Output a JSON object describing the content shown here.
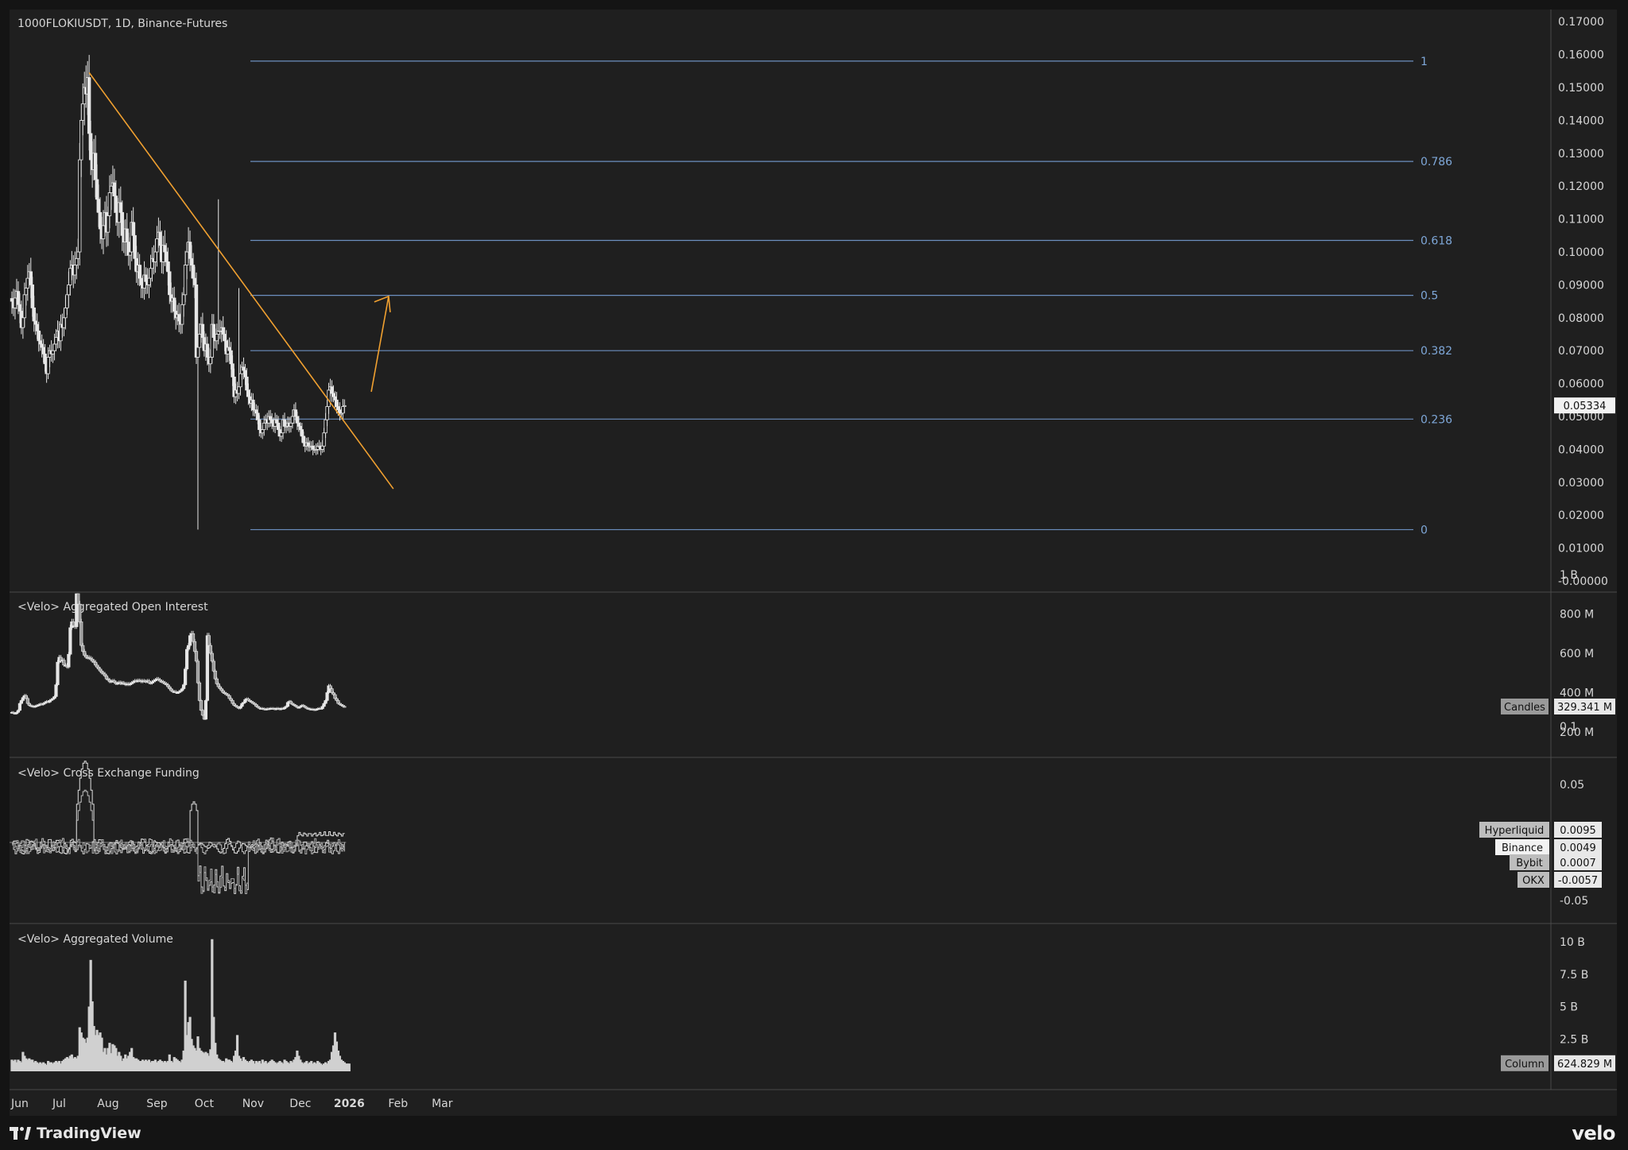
{
  "header": {
    "symbol_line": "1000FLOKIUSDT, 1D, Binance-Futures"
  },
  "chart_data": [
    {
      "type": "candlestick",
      "title": "1000FLOKIUSDT, 1D, Binance-Futures",
      "ylim": [
        0,
        0.175
      ],
      "yticks": [
        "0.17000",
        "0.16000",
        "0.15000",
        "0.14000",
        "0.13000",
        "0.12000",
        "0.11000",
        "0.10000",
        "0.09000",
        "0.08000",
        "0.07000",
        "0.06000",
        "0.05000",
        "0.04000",
        "0.03000",
        "0.02000",
        "0.01000",
        "-0.00000"
      ],
      "last_price": "0.05334",
      "fib_levels": [
        {
          "label": "1",
          "value": 0.158
        },
        {
          "label": "0.786",
          "value": 0.1275
        },
        {
          "label": "0.618",
          "value": 0.1035
        },
        {
          "label": "0.5",
          "value": 0.0868
        },
        {
          "label": "0.382",
          "value": 0.07
        },
        {
          "label": "0.236",
          "value": 0.0492
        },
        {
          "label": "0",
          "value": 0.0156
        }
      ],
      "trendline": {
        "from": {
          "date": "2025-07-20",
          "value": 0.1545
        },
        "to": {
          "date": "2026-01-29",
          "value": 0.028
        },
        "color": "#f0a030"
      },
      "arrow": {
        "from": {
          "date": "2026-01-15",
          "value": 0.0575
        },
        "to": {
          "date": "2026-01-26",
          "value": 0.0865
        },
        "color": "#f0a030"
      },
      "closes": [
        0.085,
        0.083,
        0.086,
        0.088,
        0.084,
        0.082,
        0.077,
        0.08,
        0.087,
        0.089,
        0.092,
        0.094,
        0.09,
        0.083,
        0.079,
        0.078,
        0.076,
        0.073,
        0.072,
        0.071,
        0.069,
        0.066,
        0.063,
        0.068,
        0.07,
        0.069,
        0.07,
        0.072,
        0.074,
        0.076,
        0.073,
        0.078,
        0.077,
        0.08,
        0.083,
        0.087,
        0.09,
        0.095,
        0.096,
        0.093,
        0.096,
        0.098,
        0.1,
        0.128,
        0.14,
        0.145,
        0.15,
        0.148,
        0.153,
        0.136,
        0.128,
        0.125,
        0.13,
        0.122,
        0.116,
        0.112,
        0.107,
        0.104,
        0.108,
        0.112,
        0.106,
        0.111,
        0.118,
        0.12,
        0.121,
        0.117,
        0.112,
        0.109,
        0.115,
        0.112,
        0.105,
        0.103,
        0.107,
        0.103,
        0.099,
        0.1,
        0.109,
        0.105,
        0.098,
        0.094,
        0.096,
        0.092,
        0.09,
        0.089,
        0.093,
        0.091,
        0.09,
        0.092,
        0.095,
        0.098,
        0.097,
        0.1,
        0.104,
        0.106,
        0.102,
        0.097,
        0.102,
        0.1,
        0.097,
        0.094,
        0.087,
        0.085,
        0.086,
        0.082,
        0.08,
        0.081,
        0.079,
        0.078,
        0.084,
        0.087,
        0.096,
        0.1,
        0.103,
        0.098,
        0.096,
        0.092,
        0.09,
        0.068,
        0.071,
        0.075,
        0.078,
        0.074,
        0.07,
        0.072,
        0.068,
        0.066,
        0.068,
        0.078,
        0.074,
        0.073,
        0.075,
        0.076,
        0.076,
        0.077,
        0.075,
        0.073,
        0.069,
        0.071,
        0.07,
        0.066,
        0.062,
        0.056,
        0.058,
        0.057,
        0.059,
        0.063,
        0.065,
        0.064,
        0.062,
        0.058,
        0.056,
        0.054,
        0.055,
        0.052,
        0.052,
        0.051,
        0.049,
        0.046,
        0.045,
        0.046,
        0.048,
        0.049,
        0.048,
        0.05,
        0.049,
        0.048,
        0.047,
        0.049,
        0.048,
        0.046,
        0.044,
        0.045,
        0.049,
        0.047,
        0.047,
        0.048,
        0.047,
        0.048,
        0.05,
        0.052,
        0.05,
        0.048,
        0.047,
        0.046,
        0.044,
        0.042,
        0.041,
        0.042,
        0.041,
        0.041,
        0.041,
        0.04,
        0.04,
        0.04,
        0.041,
        0.041,
        0.04,
        0.041,
        0.045,
        0.049,
        0.053,
        0.058,
        0.059,
        0.057,
        0.056,
        0.055,
        0.053,
        0.052,
        0.051,
        0.051,
        0.053,
        0.0533
      ]
    },
    {
      "type": "candlestick",
      "title": "<Velo> Aggregated Open Interest",
      "yticks": [
        "1 B",
        "800 M",
        "600 M",
        "400 M",
        "200 M"
      ],
      "ylim_millions": [
        200,
        1000
      ],
      "last_value": "329.341 M",
      "last_value_tag": "Candles",
      "closes_millions": [
        300,
        295,
        293,
        300,
        310,
        345,
        360,
        375,
        385,
        370,
        345,
        335,
        332,
        330,
        328,
        332,
        335,
        338,
        342,
        340,
        345,
        350,
        355,
        352,
        360,
        365,
        370,
        380,
        440,
        555,
        580,
        560,
        565,
        540,
        540,
        530,
        595,
        730,
        760,
        740,
        735,
        920,
        850,
        760,
        640,
        610,
        590,
        580,
        578,
        575,
        570,
        560,
        555,
        540,
        530,
        520,
        510,
        500,
        495,
        485,
        470,
        465,
        455,
        458,
        460,
        452,
        445,
        448,
        452,
        445,
        450,
        445,
        440,
        445,
        440,
        445,
        450,
        455,
        460,
        458,
        462,
        460,
        455,
        460,
        458,
        455,
        460,
        450,
        448,
        455,
        460,
        465,
        470,
        465,
        458,
        455,
        450,
        445,
        440,
        430,
        420,
        410,
        405,
        405,
        400,
        400,
        405,
        410,
        420,
        440,
        520,
        620,
        640,
        690,
        700,
        660,
        610,
        560,
        450,
        360,
        310,
        285,
        265,
        360,
        690,
        640,
        600,
        560,
        510,
        470,
        445,
        430,
        420,
        410,
        400,
        395,
        390,
        385,
        370,
        360,
        345,
        335,
        330,
        325,
        320,
        330,
        345,
        350,
        365,
        368,
        360,
        355,
        350,
        345,
        340,
        330,
        325,
        320,
        320,
        318,
        316,
        315,
        318,
        318,
        320,
        320,
        318,
        315,
        320,
        318,
        315,
        320,
        318,
        325,
        330,
        350,
        355,
        345,
        340,
        335,
        330,
        325,
        325,
        330,
        335,
        330,
        325,
        320,
        318,
        315,
        316,
        314,
        312,
        315,
        318,
        320,
        318,
        330,
        345,
        360,
        400,
        435,
        420,
        400,
        390,
        370,
        360,
        345,
        340,
        335,
        330,
        329
      ]
    },
    {
      "type": "line",
      "title": "<Velo> Cross Exchange Funding",
      "yticks": [
        "0.1",
        "0.05",
        "-0.05"
      ],
      "ylim": [
        -0.11,
        0.11
      ],
      "series": [
        {
          "name": "Hyperliquid",
          "last": "0.0095"
        },
        {
          "name": "Binance",
          "last": "0.0049"
        },
        {
          "name": "Bybit",
          "last": "0.0007"
        },
        {
          "name": "OKX",
          "last": "-0.0057"
        }
      ]
    },
    {
      "type": "bar",
      "title": "<Velo> Aggregated Volume",
      "yticks": [
        "10 B",
        "7.5 B",
        "5 B",
        "2.5 B"
      ],
      "ylim_billions": [
        0,
        10.5
      ],
      "last_value": "624.829 M",
      "last_value_tag": "Column",
      "values_billions": [
        0.9,
        0.8,
        0.9,
        0.7,
        0.9,
        0.8,
        0.7,
        1.5,
        1.2,
        1.0,
        0.9,
        1.0,
        0.9,
        0.9,
        0.7,
        0.8,
        0.7,
        0.6,
        0.7,
        0.6,
        0.7,
        0.6,
        0.5,
        0.8,
        0.7,
        0.7,
        0.6,
        0.7,
        0.8,
        0.7,
        0.8,
        0.6,
        0.8,
        0.9,
        1.0,
        1.1,
        1.0,
        1.2,
        1.3,
        1.0,
        1.1,
        1.0,
        1.2,
        3.4,
        3.0,
        2.6,
        2.5,
        2.2,
        2.6,
        5.0,
        8.6,
        5.4,
        3.5,
        2.8,
        3.2,
        2.8,
        3.0,
        2.6,
        1.5,
        1.8,
        1.3,
        1.8,
        2.2,
        1.4,
        2.1,
        2.0,
        1.8,
        1.2,
        1.5,
        1.2,
        0.8,
        1.0,
        1.3,
        1.0,
        1.2,
        1.5,
        1.8,
        1.1,
        1.0,
        1.0,
        0.9,
        0.8,
        0.8,
        0.9,
        0.8,
        0.9,
        0.8,
        0.9,
        0.7,
        0.8,
        0.8,
        0.9,
        0.7,
        0.8,
        0.9,
        0.8,
        0.7,
        0.8,
        0.7,
        0.8,
        1.3,
        0.8,
        0.7,
        1.1,
        1.0,
        0.9,
        0.8,
        0.7,
        0.9,
        1.6,
        7.0,
        2.8,
        3.8,
        4.2,
        2.5,
        2.0,
        1.8,
        1.6,
        2.7,
        1.8,
        1.6,
        1.5,
        1.4,
        1.5,
        1.4,
        1.2,
        1.7,
        10.2,
        4.2,
        2.2,
        1.3,
        1.0,
        0.9,
        0.8,
        0.8,
        0.7,
        1.0,
        0.9,
        0.9,
        0.8,
        0.7,
        1.2,
        1.6,
        2.8,
        1.2,
        1.0,
        0.8,
        1.1,
        0.9,
        0.8,
        0.7,
        0.8,
        0.9,
        0.8,
        0.6,
        0.8,
        0.7,
        0.8,
        0.6,
        0.9,
        0.7,
        0.8,
        0.6,
        0.7,
        0.8,
        0.9,
        0.8,
        0.7,
        0.6,
        0.7,
        0.8,
        0.7,
        0.6,
        0.9,
        0.8,
        0.7,
        0.6,
        0.8,
        0.7,
        0.9,
        1.1,
        1.6,
        1.2,
        0.9,
        0.7,
        0.6,
        0.7,
        0.8,
        0.6,
        0.7,
        0.8,
        0.6,
        0.7,
        0.6,
        0.8,
        0.7,
        0.6,
        0.5,
        0.6,
        0.7,
        0.6,
        0.8,
        0.9,
        1.5,
        2.0,
        3.0,
        2.3,
        1.6,
        1.2,
        0.9,
        0.8,
        0.7,
        0.6,
        0.6,
        0.6
      ]
    }
  ],
  "x_axis": {
    "labels": [
      "Jun",
      "Jul",
      "Aug",
      "Sep",
      "Oct",
      "Nov",
      "Dec",
      "2026",
      "Feb",
      "Mar"
    ],
    "bold_label": "2026"
  },
  "footer": {
    "left_brand": "TradingView",
    "right_brand": "velo"
  },
  "colors": {
    "background": "#1f1f1f",
    "grid_line": "#3a3a3a",
    "fib_line": "#6c8fbf",
    "fib_label": "#7ea7d8",
    "trendline": "#f0a030",
    "candle": "#e6e6e6"
  }
}
